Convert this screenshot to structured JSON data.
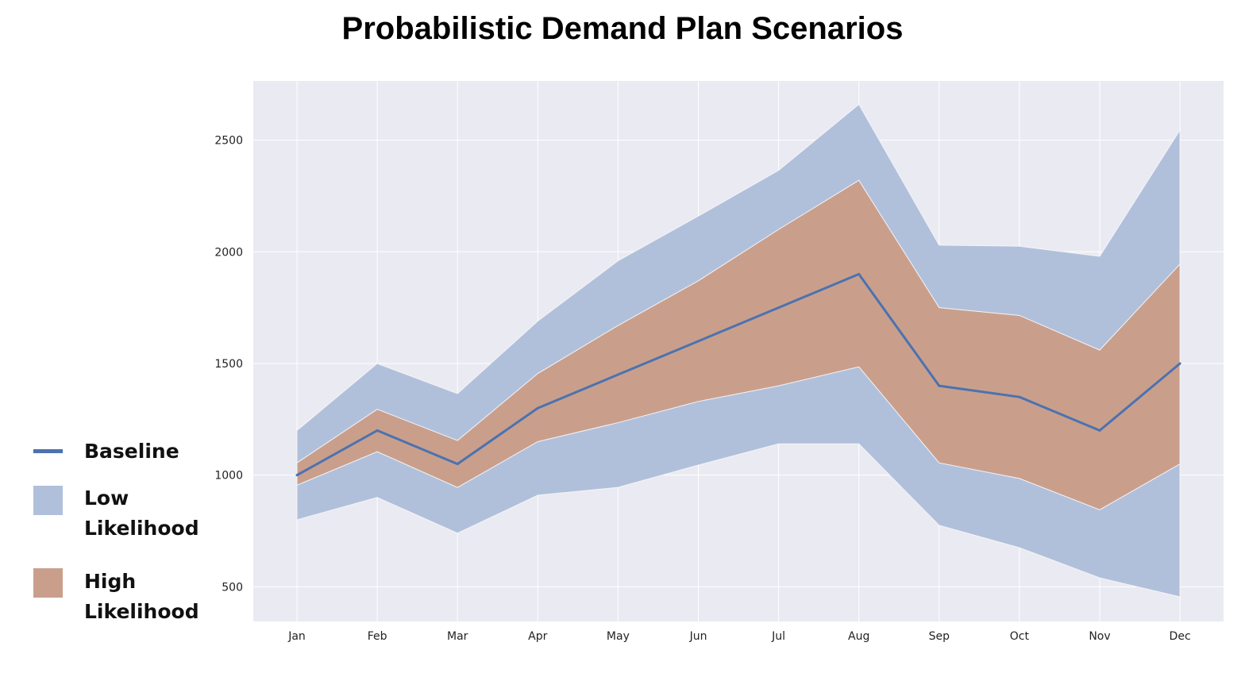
{
  "chart_data": {
    "type": "area",
    "title": "Probabilistic Demand Plan Scenarios",
    "xlabel": "",
    "ylabel": "",
    "categories": [
      "Jan",
      "Feb",
      "Mar",
      "Apr",
      "May",
      "Jun",
      "Jul",
      "Aug",
      "Sep",
      "Oct",
      "Nov",
      "Dec"
    ],
    "ylim": [
      345,
      2765
    ],
    "yticks": [
      500,
      1000,
      1500,
      2000,
      2500
    ],
    "grid": true,
    "legend_position": "left",
    "series": [
      {
        "name": "Baseline",
        "kind": "line",
        "color": "#4c72b0",
        "values": [
          1000,
          1200,
          1050,
          1300,
          1450,
          1600,
          1750,
          1900,
          1400,
          1350,
          1200,
          1500
        ]
      },
      {
        "name": "Low Likelihood",
        "kind": "band",
        "color": "#b1c0da",
        "upper": [
          1200,
          1500,
          1365,
          1690,
          1960,
          2160,
          2365,
          2660,
          2030,
          2025,
          1980,
          2545
        ],
        "lower": [
          800,
          900,
          740,
          910,
          945,
          1045,
          1140,
          1140,
          775,
          675,
          540,
          455
        ]
      },
      {
        "name": "High Likelihood",
        "kind": "band",
        "color": "#c99f8c",
        "upper": [
          1055,
          1295,
          1155,
          1455,
          1670,
          1870,
          2100,
          2320,
          1750,
          1715,
          1560,
          1945
        ],
        "lower": [
          955,
          1105,
          945,
          1150,
          1235,
          1330,
          1400,
          1485,
          1055,
          985,
          845,
          1050
        ]
      }
    ],
    "legend": [
      "Baseline",
      [
        "Low",
        "Likelihood"
      ],
      [
        "High",
        "Likelihood"
      ]
    ]
  },
  "colors": {
    "plot_bg": "#eaeaf2",
    "grid": "#ffffff"
  }
}
